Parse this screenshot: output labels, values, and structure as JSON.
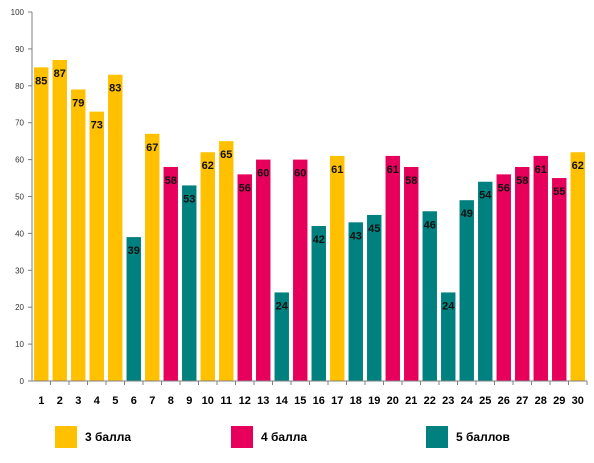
{
  "chart_data": {
    "type": "bar",
    "categories": [
      "1",
      "2",
      "3",
      "4",
      "5",
      "6",
      "7",
      "8",
      "9",
      "10",
      "11",
      "12",
      "13",
      "14",
      "15",
      "16",
      "17",
      "18",
      "19",
      "20",
      "21",
      "22",
      "23",
      "24",
      "25",
      "26",
      "27",
      "28",
      "29",
      "30"
    ],
    "values": [
      85,
      87,
      79,
      73,
      83,
      39,
      67,
      58,
      53,
      62,
      65,
      56,
      60,
      24,
      60,
      42,
      61,
      43,
      45,
      61,
      58,
      46,
      24,
      49,
      54,
      56,
      58,
      61,
      55,
      62
    ],
    "groups": [
      "3 балла",
      "3 балла",
      "3 балла",
      "3 балла",
      "3 балла",
      "5 баллов",
      "3 балла",
      "4 балла",
      "5 баллов",
      "3 балла",
      "3 балла",
      "4 балла",
      "4 балла",
      "5 баллов",
      "4 балла",
      "5 баллов",
      "3 балла",
      "5 баллов",
      "5 баллов",
      "4 балла",
      "4 балла",
      "5 баллов",
      "5 баллов",
      "5 баллов",
      "5 баллов",
      "4 балла",
      "4 балла",
      "4 балла",
      "4 балла",
      "3 балла"
    ],
    "ylim": [
      0,
      100
    ],
    "yticks": [
      "0",
      "10",
      "20",
      "30",
      "40",
      "50",
      "60",
      "70",
      "80",
      "90",
      "100"
    ],
    "title": "",
    "xlabel": "",
    "ylabel": "",
    "grid": false,
    "legend_position": "bottom",
    "legend": [
      {
        "label": "3 балла",
        "color": "#FFC000"
      },
      {
        "label": "4 балла",
        "color": "#E6005C"
      },
      {
        "label": "5 баллов",
        "color": "#00807F"
      }
    ]
  }
}
